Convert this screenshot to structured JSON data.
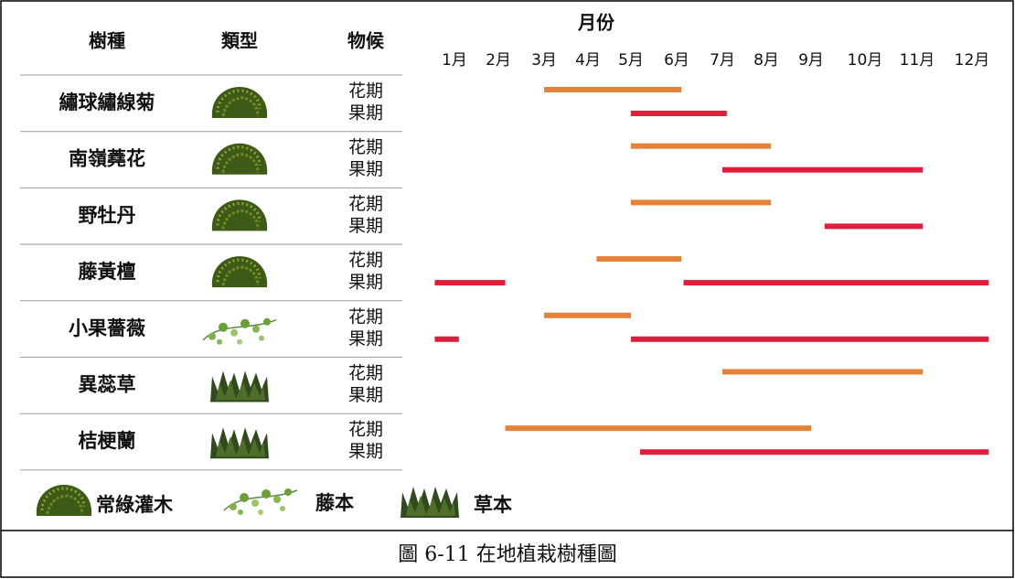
{
  "header": {
    "species": "樹種",
    "kind": "類型",
    "phenology": "物候",
    "months_title": "月份"
  },
  "chart_data": {
    "type": "gantt",
    "categories": [
      "1月",
      "2月",
      "3月",
      "4月",
      "5月",
      "6月",
      "7月",
      "8月",
      "9月",
      "10月",
      "11月",
      "12月"
    ],
    "colors": {
      "flower": "#e4823a",
      "fruit": "#e11d3c"
    },
    "rows": [
      {
        "name": "繡球繡線菊",
        "flower_label": "花期",
        "fruit_label": "果期",
        "flower": [
          [
            3,
            6.1
          ]
        ],
        "fruit": [
          [
            5,
            7.1
          ]
        ]
      },
      {
        "name": "南嶺蕘花",
        "flower_label": "花期",
        "fruit_label": "果期",
        "flower": [
          [
            5,
            8.1
          ]
        ],
        "fruit": [
          [
            7,
            11.1
          ]
        ]
      },
      {
        "name": "野牡丹",
        "flower_label": "花期",
        "fruit_label": "果期",
        "flower": [
          [
            5,
            8.1
          ]
        ],
        "fruit": [
          [
            9.25,
            11.1
          ]
        ]
      },
      {
        "name": "藤黃檀",
        "flower_label": "花期",
        "fruit_label": "果期",
        "flower": [
          [
            4.2,
            6.1
          ]
        ],
        "fruit": [
          [
            0.55,
            2.15
          ],
          [
            6.15,
            12.3
          ]
        ]
      },
      {
        "name": "小果薔薇",
        "flower_label": "花期",
        "fruit_label": "果期",
        "flower": [
          [
            3,
            5
          ]
        ],
        "fruit": [
          [
            0.55,
            1.1
          ],
          [
            5,
            12.3
          ]
        ]
      },
      {
        "name": "異蕊草",
        "flower_label": "花期",
        "fruit_label": "果期",
        "flower": [
          [
            7,
            11.1
          ]
        ],
        "fruit": []
      },
      {
        "name": "桔梗蘭",
        "flower_label": "花期",
        "fruit_label": "果期",
        "flower": [
          [
            2.15,
            9
          ]
        ],
        "fruit": [
          [
            5.2,
            12.3
          ]
        ]
      }
    ]
  },
  "legend": [
    "常綠灌木",
    "藤本",
    "草本"
  ],
  "caption": "圖 6-11 在地植栽樹種圖"
}
